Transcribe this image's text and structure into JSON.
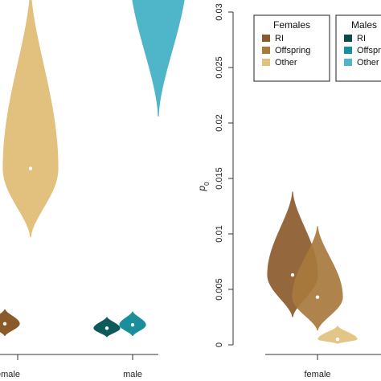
{
  "chart_data": [
    {
      "type": "violin",
      "panel": "left",
      "x_categories": [
        "female",
        "male"
      ],
      "x_tick_labels": [
        "emale",
        "male"
      ],
      "ylabel": "",
      "series": [
        {
          "sex": "female",
          "group": "RI",
          "color": "#8B5A2B",
          "median": 0.0019,
          "min": 0.0008,
          "max": 0.0032
        },
        {
          "sex": "female",
          "group": "Other",
          "color": "#E2C07E",
          "median": 0.0159,
          "min": 0.0097,
          "max": 0.0322
        },
        {
          "sex": "male",
          "group": "RI",
          "color": "#0E5A5A",
          "median": 0.0015,
          "min": 0.0007,
          "max": 0.0025
        },
        {
          "sex": "male",
          "group": "Offspring",
          "color": "#1A8E9A",
          "median": 0.0018,
          "min": 0.0008,
          "max": 0.003
        },
        {
          "sex": "male",
          "group": "Other",
          "color": "#4FB5C9",
          "median": 0.0344,
          "min": 0.0206,
          "max": 0.0573
        }
      ]
    },
    {
      "type": "violin",
      "panel": "right",
      "x_categories": [
        "female"
      ],
      "x_tick_labels": [
        "female"
      ],
      "ylabel": "p0",
      "ylim": [
        0,
        0.03
      ],
      "yticks": [
        0,
        0.005,
        0.01,
        0.015,
        0.02,
        0.025,
        0.03
      ],
      "ytick_labels": [
        "0",
        "0.005",
        "0.01",
        "0.015",
        "0.02",
        "0.025",
        "0.03"
      ],
      "series": [
        {
          "sex": "female",
          "group": "RI",
          "color": "#8B5A2B",
          "median": 0.0063,
          "min": 0.0025,
          "max": 0.0138
        },
        {
          "sex": "female",
          "group": "Offspring",
          "color": "#A87A3D",
          "median": 0.0043,
          "min": 0.0013,
          "max": 0.0107
        },
        {
          "sex": "female",
          "group": "Other",
          "color": "#E2C07E",
          "median": 0.0005,
          "min": 0.0001,
          "max": 0.0017
        }
      ]
    }
  ],
  "legend": {
    "females": {
      "title": "Females",
      "items": [
        {
          "label": "RI",
          "color": "#8B5A2B"
        },
        {
          "label": "Offspring",
          "color": "#A87A3D"
        },
        {
          "label": "Other",
          "color": "#E2C07E"
        }
      ]
    },
    "males": {
      "title": "Males",
      "items": [
        {
          "label": "RI",
          "color": "#0E4A4A"
        },
        {
          "label": "Offspring",
          "color": "#1A8E9A"
        },
        {
          "label": "Other",
          "color": "#4FB5C9"
        }
      ]
    }
  }
}
